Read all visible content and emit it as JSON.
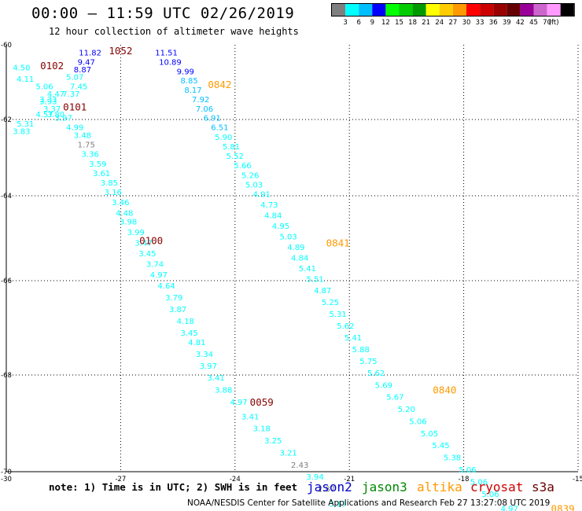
{
  "title": "00:00 – 11:59 UTC 02/26/2019",
  "subtitle": "12 hour collection of altimeter wave heights",
  "note": "note: 1) Time is in UTC; 2) SWH is in feet",
  "credit": "NOAA/NESDIS Center for Satellite Applications and Research   Feb 27 13:27:08 UTC 2019",
  "colorbar": {
    "unit": "(ft)",
    "bins": [
      {
        "color": "#7f7f7f",
        "label": ""
      },
      {
        "color": "#00ffff",
        "label": "3"
      },
      {
        "color": "#00bfff",
        "label": "6"
      },
      {
        "color": "#0000ff",
        "label": "9"
      },
      {
        "color": "#00ff00",
        "label": "12"
      },
      {
        "color": "#00cc00",
        "label": "15"
      },
      {
        "color": "#009900",
        "label": "18"
      },
      {
        "color": "#ffff00",
        "label": "21"
      },
      {
        "color": "#ffcc00",
        "label": "24"
      },
      {
        "color": "#ff9900",
        "label": "27"
      },
      {
        "color": "#ff0000",
        "label": "30"
      },
      {
        "color": "#cc0000",
        "label": "33"
      },
      {
        "color": "#990000",
        "label": "36"
      },
      {
        "color": "#660000",
        "label": "39"
      },
      {
        "color": "#990099",
        "label": "42"
      },
      {
        "color": "#cc66cc",
        "label": "45"
      },
      {
        "color": "#ff99ff",
        "label": "70"
      },
      {
        "color": "#000000",
        "label": ""
      }
    ]
  },
  "satellites": [
    {
      "name": "jason2",
      "color": "#0000cc"
    },
    {
      "name": "jason3",
      "color": "#008800"
    },
    {
      "name": "altika",
      "color": "#ff9900"
    },
    {
      "name": "cryosat",
      "color": "#cc0000"
    },
    {
      "name": "s3a",
      "color": "#660000"
    }
  ],
  "chart_data": {
    "type": "scatter",
    "title": "00:00 – 11:59 UTC 02/26/2019",
    "subtitle": "12 hour collection of altimeter wave heights",
    "xlim": [
      -30,
      -15
    ],
    "ylim": [
      -70,
      -60
    ],
    "x_ticks": [
      -30,
      -27,
      -24,
      -21,
      -18,
      -15
    ],
    "y_ticks": [
      -60,
      -62,
      -64,
      -66,
      -68,
      -70
    ],
    "grid": true,
    "points": [
      {
        "lon": -29.6,
        "lat": -60.6,
        "v": "4.50",
        "c": "#00ffff"
      },
      {
        "lon": -29.5,
        "lat": -60.9,
        "v": "4.11",
        "c": "#00ffff"
      },
      {
        "lon": -29.0,
        "lat": -61.1,
        "v": "5.06",
        "c": "#00ffff"
      },
      {
        "lon": -28.7,
        "lat": -61.3,
        "v": "4.47",
        "c": "#00ffff"
      },
      {
        "lon": -28.9,
        "lat": -61.45,
        "v": "3.33",
        "c": "#00ffff"
      },
      {
        "lon": -28.9,
        "lat": -61.5,
        "v": "3.93",
        "c": "#00ffff"
      },
      {
        "lon": -28.8,
        "lat": -61.7,
        "v": "3.37",
        "c": "#00ffff"
      },
      {
        "lon": -29.0,
        "lat": -61.85,
        "v": "4.57",
        "c": "#00ffff"
      },
      {
        "lon": -28.7,
        "lat": -61.85,
        "v": "3.80",
        "c": "#00ffff"
      },
      {
        "lon": -29.5,
        "lat": -62.1,
        "v": "5.31",
        "c": "#00ffff"
      },
      {
        "lon": -29.6,
        "lat": -62.3,
        "v": "3.83",
        "c": "#00ffff"
      },
      {
        "lon": -28.3,
        "lat": -61.3,
        "v": "7.37",
        "c": "#00ffff"
      },
      {
        "lon": -28.1,
        "lat": -61.1,
        "v": "7.45",
        "c": "#00ffff"
      },
      {
        "lon": -28.2,
        "lat": -60.85,
        "v": "5.07",
        "c": "#00ffff"
      },
      {
        "lon": -28.0,
        "lat": -60.65,
        "v": "8.87",
        "c": "#0000ff"
      },
      {
        "lon": -27.9,
        "lat": -60.45,
        "v": "9.47",
        "c": "#0000ff"
      },
      {
        "lon": -27.8,
        "lat": -60.2,
        "v": "11.82",
        "c": "#0000ff"
      },
      {
        "lon": -28.5,
        "lat": -61.95,
        "v": "3.97",
        "c": "#00ffff"
      },
      {
        "lon": -28.2,
        "lat": -62.2,
        "v": "4.99",
        "c": "#00ffff"
      },
      {
        "lon": -28.0,
        "lat": -62.4,
        "v": "3.48",
        "c": "#00ffff"
      },
      {
        "lon": -27.9,
        "lat": -62.65,
        "v": "1.75",
        "c": "#7f7f7f"
      },
      {
        "lon": -27.8,
        "lat": -62.9,
        "v": "3.36",
        "c": "#00ffff"
      },
      {
        "lon": -27.6,
        "lat": -63.15,
        "v": "3.59",
        "c": "#00ffff"
      },
      {
        "lon": -27.5,
        "lat": -63.4,
        "v": "3.61",
        "c": "#00ffff"
      },
      {
        "lon": -27.3,
        "lat": -63.65,
        "v": "3.85",
        "c": "#00ffff"
      },
      {
        "lon": -27.2,
        "lat": -63.9,
        "v": "3.16",
        "c": "#00ffff"
      },
      {
        "lon": -27.0,
        "lat": -64.15,
        "v": "3.46",
        "c": "#00ffff"
      },
      {
        "lon": -26.9,
        "lat": -64.4,
        "v": "4.48",
        "c": "#00ffff"
      },
      {
        "lon": -26.8,
        "lat": -64.6,
        "v": "3.98",
        "c": "#00ffff"
      },
      {
        "lon": -26.6,
        "lat": -64.85,
        "v": "3.99",
        "c": "#00ffff"
      },
      {
        "lon": -26.4,
        "lat": -65.1,
        "v": "3.47",
        "c": "#00ffff"
      },
      {
        "lon": -26.3,
        "lat": -65.35,
        "v": "3.45",
        "c": "#00ffff"
      },
      {
        "lon": -26.1,
        "lat": -65.6,
        "v": "3.74",
        "c": "#00ffff"
      },
      {
        "lon": -26.0,
        "lat": -65.85,
        "v": "4.97",
        "c": "#00ffff"
      },
      {
        "lon": -25.8,
        "lat": -66.1,
        "v": "4.64",
        "c": "#00ffff"
      },
      {
        "lon": -25.6,
        "lat": -66.35,
        "v": "3.79",
        "c": "#00ffff"
      },
      {
        "lon": -25.5,
        "lat": -66.6,
        "v": "3.87",
        "c": "#00ffff"
      },
      {
        "lon": -25.3,
        "lat": -66.85,
        "v": "4.18",
        "c": "#00ffff"
      },
      {
        "lon": -25.2,
        "lat": -67.1,
        "v": "3.45",
        "c": "#00ffff"
      },
      {
        "lon": -25.0,
        "lat": -67.3,
        "v": "4.81",
        "c": "#00ffff"
      },
      {
        "lon": -24.8,
        "lat": -67.55,
        "v": "3.34",
        "c": "#00ffff"
      },
      {
        "lon": -24.7,
        "lat": -67.8,
        "v": "3.97",
        "c": "#00ffff"
      },
      {
        "lon": -24.5,
        "lat": -68.05,
        "v": "3.41",
        "c": "#00ffff"
      },
      {
        "lon": -24.3,
        "lat": -68.3,
        "v": "3.88",
        "c": "#00ffff"
      },
      {
        "lon": -23.9,
        "lat": -68.55,
        "v": "4.97",
        "c": "#00ffff"
      },
      {
        "lon": -23.6,
        "lat": -68.85,
        "v": "3.41",
        "c": "#00ffff"
      },
      {
        "lon": -23.3,
        "lat": -69.1,
        "v": "3.18",
        "c": "#00ffff"
      },
      {
        "lon": -23.0,
        "lat": -69.35,
        "v": "3.25",
        "c": "#00ffff"
      },
      {
        "lon": -22.6,
        "lat": -69.6,
        "v": "3.21",
        "c": "#00ffff"
      },
      {
        "lon": -22.3,
        "lat": -69.85,
        "v": "2.43",
        "c": "#7f7f7f"
      },
      {
        "lon": -21.9,
        "lat": -70.1,
        "v": "3.94",
        "c": "#00ffff"
      },
      {
        "lon": -21.6,
        "lat": -70.35,
        "v": "2.87",
        "c": "#7f7f7f"
      },
      {
        "lon": -21.3,
        "lat": -70.65,
        "v": "3.17",
        "c": "#00ffff"
      },
      {
        "lon": -25.8,
        "lat": -60.2,
        "v": "11.51",
        "c": "#0000ff"
      },
      {
        "lon": -25.7,
        "lat": -60.45,
        "v": "10.89",
        "c": "#0000ff"
      },
      {
        "lon": -25.3,
        "lat": -60.7,
        "v": "9.99",
        "c": "#0000ff"
      },
      {
        "lon": -25.2,
        "lat": -60.95,
        "v": "8.85",
        "c": "#00bfff"
      },
      {
        "lon": -25.1,
        "lat": -61.2,
        "v": "8.17",
        "c": "#00bfff"
      },
      {
        "lon": -24.9,
        "lat": -61.45,
        "v": "7.92",
        "c": "#00bfff"
      },
      {
        "lon": -24.8,
        "lat": -61.7,
        "v": "7.06",
        "c": "#00bfff"
      },
      {
        "lon": -24.6,
        "lat": -61.95,
        "v": "6.91",
        "c": "#00bfff"
      },
      {
        "lon": -24.4,
        "lat": -62.2,
        "v": "6.51",
        "c": "#00bfff"
      },
      {
        "lon": -24.3,
        "lat": -62.45,
        "v": "5.90",
        "c": "#00ffff"
      },
      {
        "lon": -24.1,
        "lat": -62.7,
        "v": "5.81",
        "c": "#00ffff"
      },
      {
        "lon": -24.0,
        "lat": -62.95,
        "v": "5.52",
        "c": "#00ffff"
      },
      {
        "lon": -23.8,
        "lat": -63.2,
        "v": "5.66",
        "c": "#00ffff"
      },
      {
        "lon": -23.6,
        "lat": -63.45,
        "v": "5.26",
        "c": "#00ffff"
      },
      {
        "lon": -23.5,
        "lat": -63.7,
        "v": "5.03",
        "c": "#00ffff"
      },
      {
        "lon": -23.3,
        "lat": -63.95,
        "v": "4.91",
        "c": "#00ffff"
      },
      {
        "lon": -23.1,
        "lat": -64.2,
        "v": "4.73",
        "c": "#00ffff"
      },
      {
        "lon": -23.0,
        "lat": -64.45,
        "v": "4.84",
        "c": "#00ffff"
      },
      {
        "lon": -22.8,
        "lat": -64.7,
        "v": "4.95",
        "c": "#00ffff"
      },
      {
        "lon": -22.6,
        "lat": -64.95,
        "v": "5.03",
        "c": "#00ffff"
      },
      {
        "lon": -22.4,
        "lat": -65.2,
        "v": "4.89",
        "c": "#00ffff"
      },
      {
        "lon": -22.3,
        "lat": -65.45,
        "v": "4.84",
        "c": "#00ffff"
      },
      {
        "lon": -22.1,
        "lat": -65.7,
        "v": "5.41",
        "c": "#00ffff"
      },
      {
        "lon": -21.9,
        "lat": -65.95,
        "v": "5.51",
        "c": "#00ffff"
      },
      {
        "lon": -21.7,
        "lat": -66.2,
        "v": "4.87",
        "c": "#00ffff"
      },
      {
        "lon": -21.5,
        "lat": -66.45,
        "v": "5.25",
        "c": "#00ffff"
      },
      {
        "lon": -21.3,
        "lat": -66.7,
        "v": "5.31",
        "c": "#00ffff"
      },
      {
        "lon": -21.1,
        "lat": -66.95,
        "v": "5.62",
        "c": "#00ffff"
      },
      {
        "lon": -20.9,
        "lat": -67.2,
        "v": "5.41",
        "c": "#00ffff"
      },
      {
        "lon": -20.7,
        "lat": -67.45,
        "v": "5.88",
        "c": "#00ffff"
      },
      {
        "lon": -20.5,
        "lat": -67.7,
        "v": "5.75",
        "c": "#00ffff"
      },
      {
        "lon": -20.3,
        "lat": -67.95,
        "v": "5.62",
        "c": "#00ffff"
      },
      {
        "lon": -20.1,
        "lat": -68.2,
        "v": "5.69",
        "c": "#00ffff"
      },
      {
        "lon": -19.8,
        "lat": -68.45,
        "v": "5.67",
        "c": "#00ffff"
      },
      {
        "lon": -19.5,
        "lat": -68.7,
        "v": "5.20",
        "c": "#00ffff"
      },
      {
        "lon": -19.2,
        "lat": -68.95,
        "v": "5.06",
        "c": "#00ffff"
      },
      {
        "lon": -18.9,
        "lat": -69.2,
        "v": "5.05",
        "c": "#00ffff"
      },
      {
        "lon": -18.6,
        "lat": -69.45,
        "v": "5.45",
        "c": "#00ffff"
      },
      {
        "lon": -18.3,
        "lat": -69.7,
        "v": "5.38",
        "c": "#00ffff"
      },
      {
        "lon": -17.9,
        "lat": -69.95,
        "v": "5.06",
        "c": "#00ffff"
      },
      {
        "lon": -17.6,
        "lat": -70.2,
        "v": "5.06",
        "c": "#00ffff"
      },
      {
        "lon": -17.3,
        "lat": -70.45,
        "v": "5.06",
        "c": "#00ffff"
      },
      {
        "lon": -16.8,
        "lat": -70.75,
        "v": "4.97",
        "c": "#00ffff"
      }
    ],
    "time_labels": [
      {
        "lon": -28.8,
        "lat": -60.55,
        "text": "0102",
        "c": "#880000"
      },
      {
        "lon": -27.0,
        "lat": -60.15,
        "text": "1052",
        "c": "#880000"
      },
      {
        "lon": -28.2,
        "lat": -61.65,
        "text": "0101",
        "c": "#880000"
      },
      {
        "lon": -26.2,
        "lat": -65.05,
        "text": "0100",
        "c": "#880000"
      },
      {
        "lon": -23.3,
        "lat": -68.55,
        "text": "0059",
        "c": "#880000"
      },
      {
        "lon": -24.4,
        "lat": -61.05,
        "text": "0842",
        "c": "#ff9900"
      },
      {
        "lon": -21.3,
        "lat": -65.1,
        "text": "0841",
        "c": "#ff9900"
      },
      {
        "lon": -18.5,
        "lat": -68.3,
        "text": "0840",
        "c": "#ff9900"
      },
      {
        "lon": -15.4,
        "lat": -70.75,
        "text": "0839",
        "c": "#ff9900"
      }
    ]
  }
}
